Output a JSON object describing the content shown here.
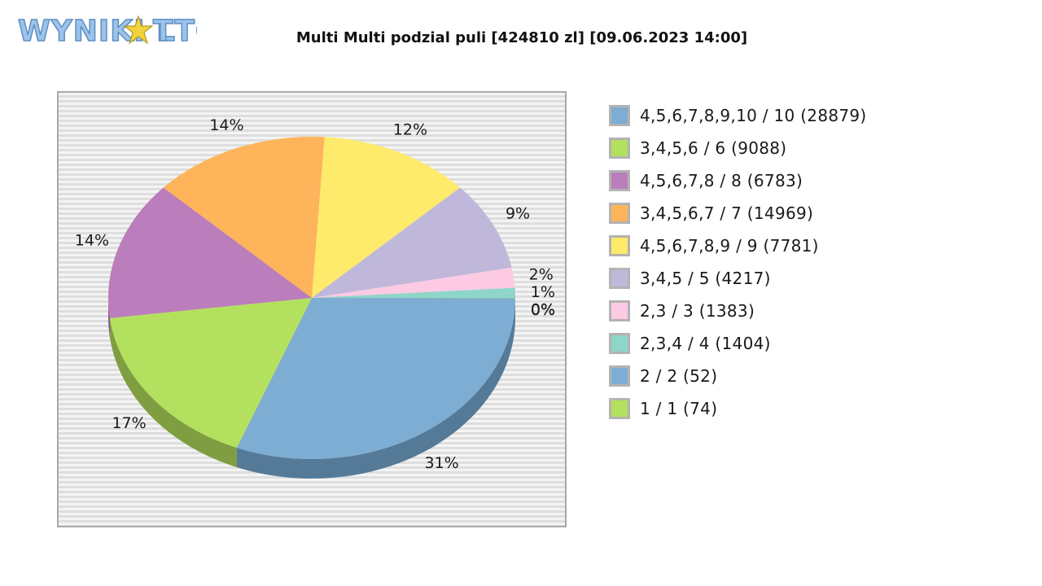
{
  "header": {
    "logo_text": "WYNIKI LOTTO",
    "title": "Multi Multi podzial puli [424810 zl] [09.06.2023 14:00]"
  },
  "chart_data": {
    "type": "pie",
    "title": "Multi Multi podzial puli [424810 zl] [09.06.2023 14:00]",
    "total": 424810,
    "series": [
      {
        "label": "4,5,6,7,8,9,10 / 10 (28879)",
        "value": 28879,
        "color": "#7dadd3",
        "shade": "#557a98",
        "pct_label": "31%"
      },
      {
        "label": "3,4,5,6 / 6 (9088)",
        "value": 9088,
        "color": "#b3e05e",
        "shade": "#7f9e42",
        "pct_label": "17%"
      },
      {
        "label": "4,5,6,7,8 / 8 (6783)",
        "value": 6783,
        "color": "#bb7dbb",
        "shade": "#865886",
        "pct_label": "14%"
      },
      {
        "label": "3,4,5,6,7 / 7 (14969)",
        "value": 14969,
        "color": "#feb45a",
        "shade": "#b5803f",
        "pct_label": "14%"
      },
      {
        "label": "4,5,6,7,8,9 / 9 (7781)",
        "value": 7781,
        "color": "#feea6b",
        "shade": "#b5a64b",
        "pct_label": "12%"
      },
      {
        "label": "3,4,5 / 5 (4217)",
        "value": 4217,
        "color": "#bfb8db",
        "shade": "#88839c",
        "pct_label": "9%"
      },
      {
        "label": "2,3 / 3 (1383)",
        "value": 1383,
        "color": "#fdcae3",
        "shade": "#b490a2",
        "pct_label": "2%"
      },
      {
        "label": "2,3,4 / 4 (1404)",
        "value": 1404,
        "color": "#8dd6c9",
        "shade": "#64988f",
        "pct_label": "1%"
      },
      {
        "label": "2 / 2 (52)",
        "value": 52,
        "color": "#7dadd3",
        "shade": "#557a98",
        "pct_label": "0%"
      },
      {
        "label": "1 / 1 (74)",
        "value": 74,
        "color": "#b3e05e",
        "shade": "#7f9e42",
        "pct_label": "0%"
      }
    ],
    "slice_percents": [
      31,
      17,
      14,
      14,
      12,
      9,
      2,
      1,
      0,
      0
    ],
    "legend_position": "right"
  }
}
